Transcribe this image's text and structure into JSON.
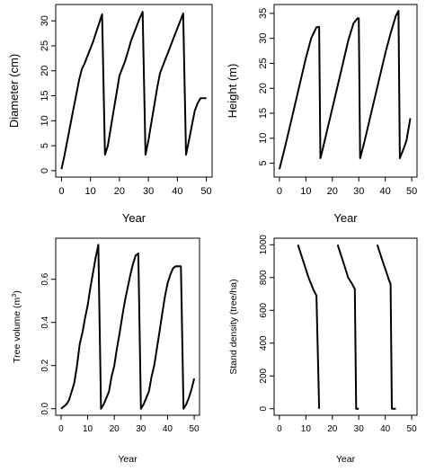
{
  "chart_data": [
    {
      "type": "line",
      "xlabel": "Year",
      "ylabel": "Diameter (cm)",
      "xlim": [
        0,
        50
      ],
      "ylim": [
        0,
        32
      ],
      "xticks": [
        0,
        10,
        20,
        30,
        40,
        50
      ],
      "yticks": [
        0,
        5,
        10,
        15,
        20,
        25,
        30
      ],
      "x": [
        0,
        1,
        2,
        3,
        4,
        5,
        6,
        7,
        8,
        9,
        10,
        11,
        12,
        13,
        14,
        15,
        16,
        17,
        18,
        19,
        20,
        21,
        22,
        23,
        24,
        25,
        26,
        27,
        28,
        29,
        30,
        31,
        32,
        33,
        34,
        35,
        36,
        37,
        38,
        39,
        40,
        41,
        42,
        43,
        44,
        45,
        46,
        47,
        48,
        49,
        50
      ],
      "y": [
        0.3,
        3.0,
        6.0,
        9.0,
        12.0,
        15.0,
        18.0,
        20.3,
        21.5,
        23.0,
        24.5,
        26.0,
        27.8,
        29.5,
        31.3,
        3.2,
        5.0,
        8.5,
        12.0,
        15.5,
        19.0,
        20.5,
        22.0,
        24.0,
        26.0,
        27.5,
        29.0,
        30.5,
        31.8,
        3.2,
        6.0,
        9.5,
        13.0,
        16.5,
        19.5,
        21.0,
        22.5,
        24.0,
        25.5,
        27.0,
        28.5,
        30.0,
        31.5,
        3.2,
        6.0,
        9.0,
        12.0,
        13.5,
        14.5,
        14.5,
        14.5
      ]
    },
    {
      "type": "line",
      "xlabel": "Year",
      "ylabel": "Height (m)",
      "xlim": [
        0,
        50
      ],
      "ylim": [
        3.5,
        35.5
      ],
      "xticks": [
        0,
        10,
        20,
        30,
        40,
        50
      ],
      "yticks": [
        5,
        10,
        15,
        20,
        25,
        30,
        35
      ],
      "x": [
        0,
        2,
        4,
        6,
        8,
        10,
        12,
        14,
        15,
        15.5,
        16,
        18,
        20,
        22,
        24,
        26,
        28,
        29.5,
        30,
        30.5,
        32,
        34,
        36,
        38,
        40,
        42,
        44,
        45,
        45.5,
        47,
        48,
        49.5
      ],
      "y": [
        3.8,
        8.0,
        12.5,
        17.0,
        21.5,
        26.0,
        30.0,
        32.2,
        32.3,
        6.0,
        7.0,
        11.5,
        16.0,
        20.5,
        25.0,
        29.5,
        33.0,
        34.0,
        34.0,
        6.0,
        9.0,
        13.5,
        18.0,
        22.5,
        27.0,
        31.0,
        34.5,
        35.5,
        6.0,
        8.0,
        9.5,
        14.0
      ]
    },
    {
      "type": "line",
      "xlabel": "Year",
      "ylabel": "Tree volume (m3)",
      "xlim": [
        0,
        50
      ],
      "ylim": [
        0,
        0.76
      ],
      "xticks": [
        0,
        10,
        20,
        30,
        40,
        50
      ],
      "yticks": [
        0.0,
        0.2,
        0.4,
        0.6
      ],
      "x": [
        0,
        1,
        2,
        3,
        4,
        5,
        6,
        7,
        8,
        9,
        10,
        11,
        12,
        13,
        14,
        15,
        16,
        17,
        18,
        19,
        20,
        21,
        22,
        23,
        24,
        25,
        26,
        27,
        28,
        29,
        30,
        31,
        32,
        33,
        34,
        35,
        36,
        37,
        38,
        39,
        40,
        41,
        42,
        43,
        44,
        45,
        46,
        47,
        48,
        49,
        50
      ],
      "y": [
        0.0,
        0.01,
        0.02,
        0.04,
        0.08,
        0.12,
        0.2,
        0.3,
        0.35,
        0.42,
        0.48,
        0.56,
        0.63,
        0.7,
        0.76,
        0.0,
        0.02,
        0.05,
        0.08,
        0.15,
        0.2,
        0.28,
        0.35,
        0.43,
        0.5,
        0.56,
        0.62,
        0.67,
        0.71,
        0.72,
        0.0,
        0.02,
        0.05,
        0.08,
        0.15,
        0.2,
        0.28,
        0.36,
        0.44,
        0.52,
        0.58,
        0.62,
        0.65,
        0.66,
        0.66,
        0.66,
        0.0,
        0.02,
        0.05,
        0.09,
        0.14
      ]
    },
    {
      "type": "line",
      "xlabel": "Year",
      "ylabel": "Stand density (tree/ha)",
      "xlim": [
        0,
        50
      ],
      "ylim": [
        0,
        1000
      ],
      "xticks": [
        0,
        10,
        20,
        30,
        40,
        50
      ],
      "yticks": [
        0,
        200,
        400,
        600,
        800,
        1000
      ],
      "series": [
        {
          "x": [
            7,
            9,
            11,
            13,
            14,
            14.5,
            15
          ],
          "y": [
            1000,
            900,
            800,
            720,
            690,
            350,
            0
          ]
        },
        {
          "x": [
            22,
            24,
            26,
            27.5,
            28.5,
            29,
            30
          ],
          "y": [
            1000,
            900,
            800,
            760,
            730,
            0,
            0
          ]
        },
        {
          "x": [
            37,
            39,
            40.5,
            41.5,
            42,
            42.5,
            44
          ],
          "y": [
            1000,
            900,
            830,
            780,
            760,
            0,
            0
          ]
        }
      ]
    }
  ]
}
